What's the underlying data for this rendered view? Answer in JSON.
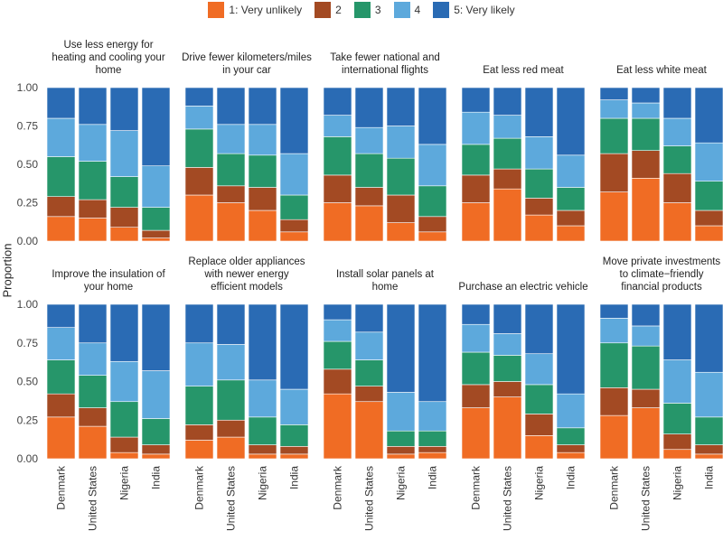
{
  "chart_data": {
    "type": "bar",
    "stacked": true,
    "ylabel": "Proportion",
    "xlabel": "",
    "ylim": [
      0,
      1
    ],
    "yticks": [
      "0.00",
      "0.25",
      "0.50",
      "0.75",
      "1.00"
    ],
    "categories": [
      "Denmark",
      "United States",
      "Nigeria",
      "India"
    ],
    "legend_position": "top",
    "grid": false,
    "levels": [
      {
        "name": "1: Very unlikely",
        "color": "#F06C24"
      },
      {
        "name": "2",
        "color": "#A34A23"
      },
      {
        "name": "3",
        "color": "#26966A"
      },
      {
        "name": "4",
        "color": "#5DA9DC"
      },
      {
        "name": "5: Very likely",
        "color": "#2A6BB4"
      }
    ],
    "panels": [
      {
        "title": "Use less energy for\nheating and cooling your\nhome",
        "values": [
          [
            0.16,
            0.13,
            0.26,
            0.25,
            0.2
          ],
          [
            0.15,
            0.12,
            0.25,
            0.24,
            0.24
          ],
          [
            0.09,
            0.13,
            0.2,
            0.3,
            0.28
          ],
          [
            0.02,
            0.05,
            0.15,
            0.27,
            0.51
          ]
        ]
      },
      {
        "title": "Drive fewer kilometers/miles\nin your car",
        "values": [
          [
            0.3,
            0.18,
            0.25,
            0.15,
            0.12
          ],
          [
            0.25,
            0.11,
            0.21,
            0.19,
            0.24
          ],
          [
            0.2,
            0.15,
            0.21,
            0.2,
            0.24
          ],
          [
            0.06,
            0.08,
            0.16,
            0.27,
            0.43
          ]
        ]
      },
      {
        "title": "Take fewer national and\ninternational flights",
        "values": [
          [
            0.25,
            0.18,
            0.25,
            0.14,
            0.18
          ],
          [
            0.23,
            0.12,
            0.22,
            0.17,
            0.26
          ],
          [
            0.12,
            0.18,
            0.24,
            0.21,
            0.25
          ],
          [
            0.06,
            0.1,
            0.2,
            0.27,
            0.37
          ]
        ]
      },
      {
        "title": "Eat less red meat",
        "values": [
          [
            0.25,
            0.18,
            0.2,
            0.21,
            0.16
          ],
          [
            0.34,
            0.13,
            0.2,
            0.15,
            0.18
          ],
          [
            0.17,
            0.11,
            0.19,
            0.21,
            0.32
          ],
          [
            0.1,
            0.1,
            0.15,
            0.21,
            0.44
          ]
        ]
      },
      {
        "title": "Eat less white meat",
        "values": [
          [
            0.32,
            0.25,
            0.23,
            0.12,
            0.08
          ],
          [
            0.41,
            0.18,
            0.21,
            0.1,
            0.1
          ],
          [
            0.25,
            0.19,
            0.18,
            0.18,
            0.2
          ],
          [
            0.1,
            0.1,
            0.19,
            0.25,
            0.36
          ]
        ]
      },
      {
        "title": "Improve the insulation of\nyour home",
        "values": [
          [
            0.27,
            0.15,
            0.22,
            0.21,
            0.15
          ],
          [
            0.21,
            0.12,
            0.21,
            0.21,
            0.25
          ],
          [
            0.04,
            0.1,
            0.23,
            0.26,
            0.37
          ],
          [
            0.03,
            0.06,
            0.17,
            0.31,
            0.43
          ]
        ]
      },
      {
        "title": "Replace older appliances\nwith newer energy\nefficient models",
        "values": [
          [
            0.12,
            0.1,
            0.25,
            0.28,
            0.25
          ],
          [
            0.14,
            0.11,
            0.26,
            0.23,
            0.26
          ],
          [
            0.03,
            0.06,
            0.18,
            0.24,
            0.49
          ],
          [
            0.03,
            0.05,
            0.14,
            0.23,
            0.55
          ]
        ]
      },
      {
        "title": "Install solar panels at\nhome",
        "values": [
          [
            0.42,
            0.16,
            0.18,
            0.14,
            0.1
          ],
          [
            0.37,
            0.1,
            0.17,
            0.18,
            0.18
          ],
          [
            0.03,
            0.05,
            0.1,
            0.25,
            0.57
          ],
          [
            0.04,
            0.04,
            0.1,
            0.19,
            0.63
          ]
        ]
      },
      {
        "title": "Purchase an electric vehicle",
        "values": [
          [
            0.33,
            0.15,
            0.21,
            0.18,
            0.13
          ],
          [
            0.4,
            0.1,
            0.17,
            0.14,
            0.19
          ],
          [
            0.15,
            0.14,
            0.19,
            0.2,
            0.32
          ],
          [
            0.04,
            0.05,
            0.11,
            0.22,
            0.58
          ]
        ]
      },
      {
        "title": "Move private investments\nto climate−friendly\nfinancial products",
        "values": [
          [
            0.28,
            0.18,
            0.29,
            0.16,
            0.09
          ],
          [
            0.33,
            0.12,
            0.28,
            0.13,
            0.14
          ],
          [
            0.06,
            0.1,
            0.2,
            0.28,
            0.36
          ],
          [
            0.03,
            0.06,
            0.18,
            0.29,
            0.44
          ]
        ]
      }
    ]
  }
}
